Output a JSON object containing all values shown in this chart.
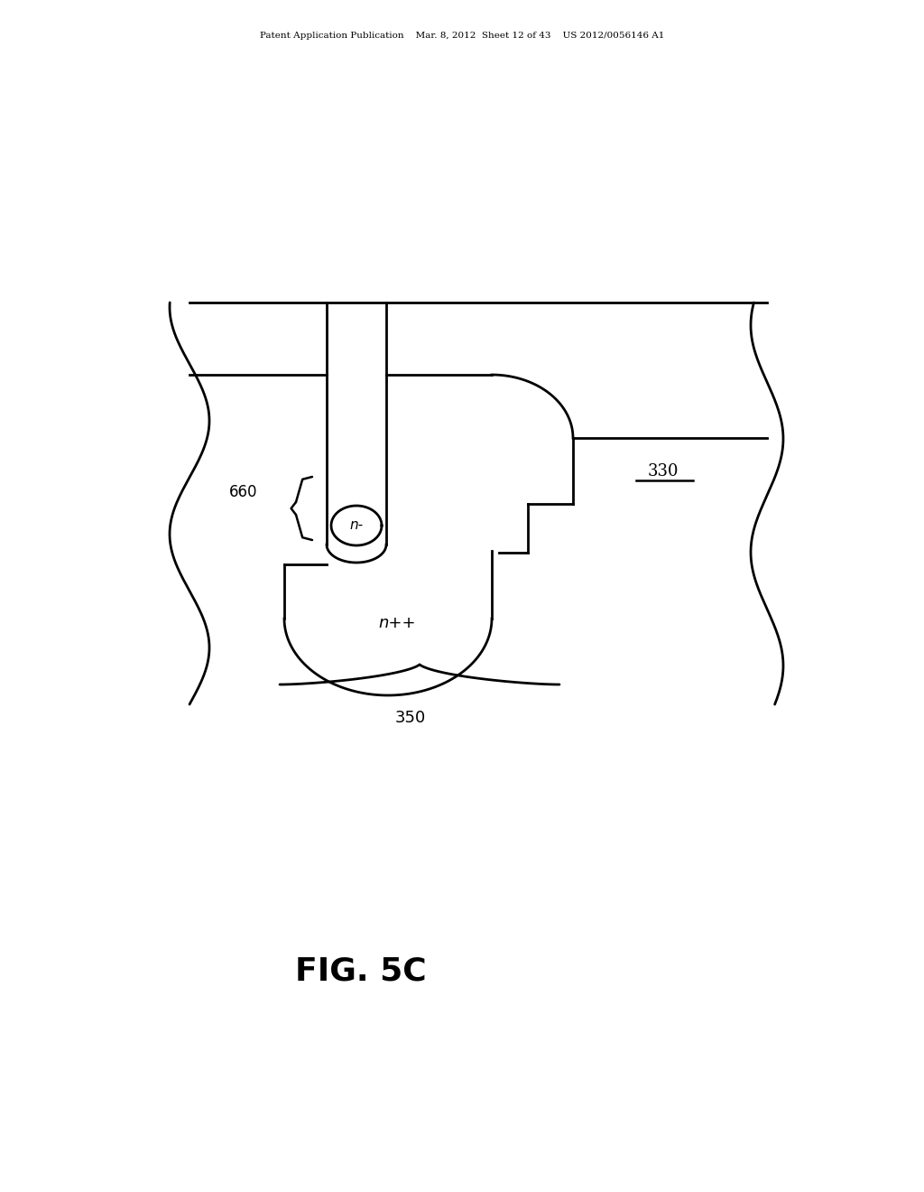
{
  "background_color": "#ffffff",
  "line_color": "#000000",
  "line_width": 2.0,
  "fig_width": 10.24,
  "fig_height": 13.2,
  "header_text": "Patent Application Publication    Mar. 8, 2012  Sheet 12 of 43    US 2012/0056146 A1",
  "figure_label": "FIG. 5C",
  "label_330": "330",
  "label_350": "350",
  "label_660": "660",
  "label_n_minus": "n-",
  "label_n_plus_plus": "n++"
}
